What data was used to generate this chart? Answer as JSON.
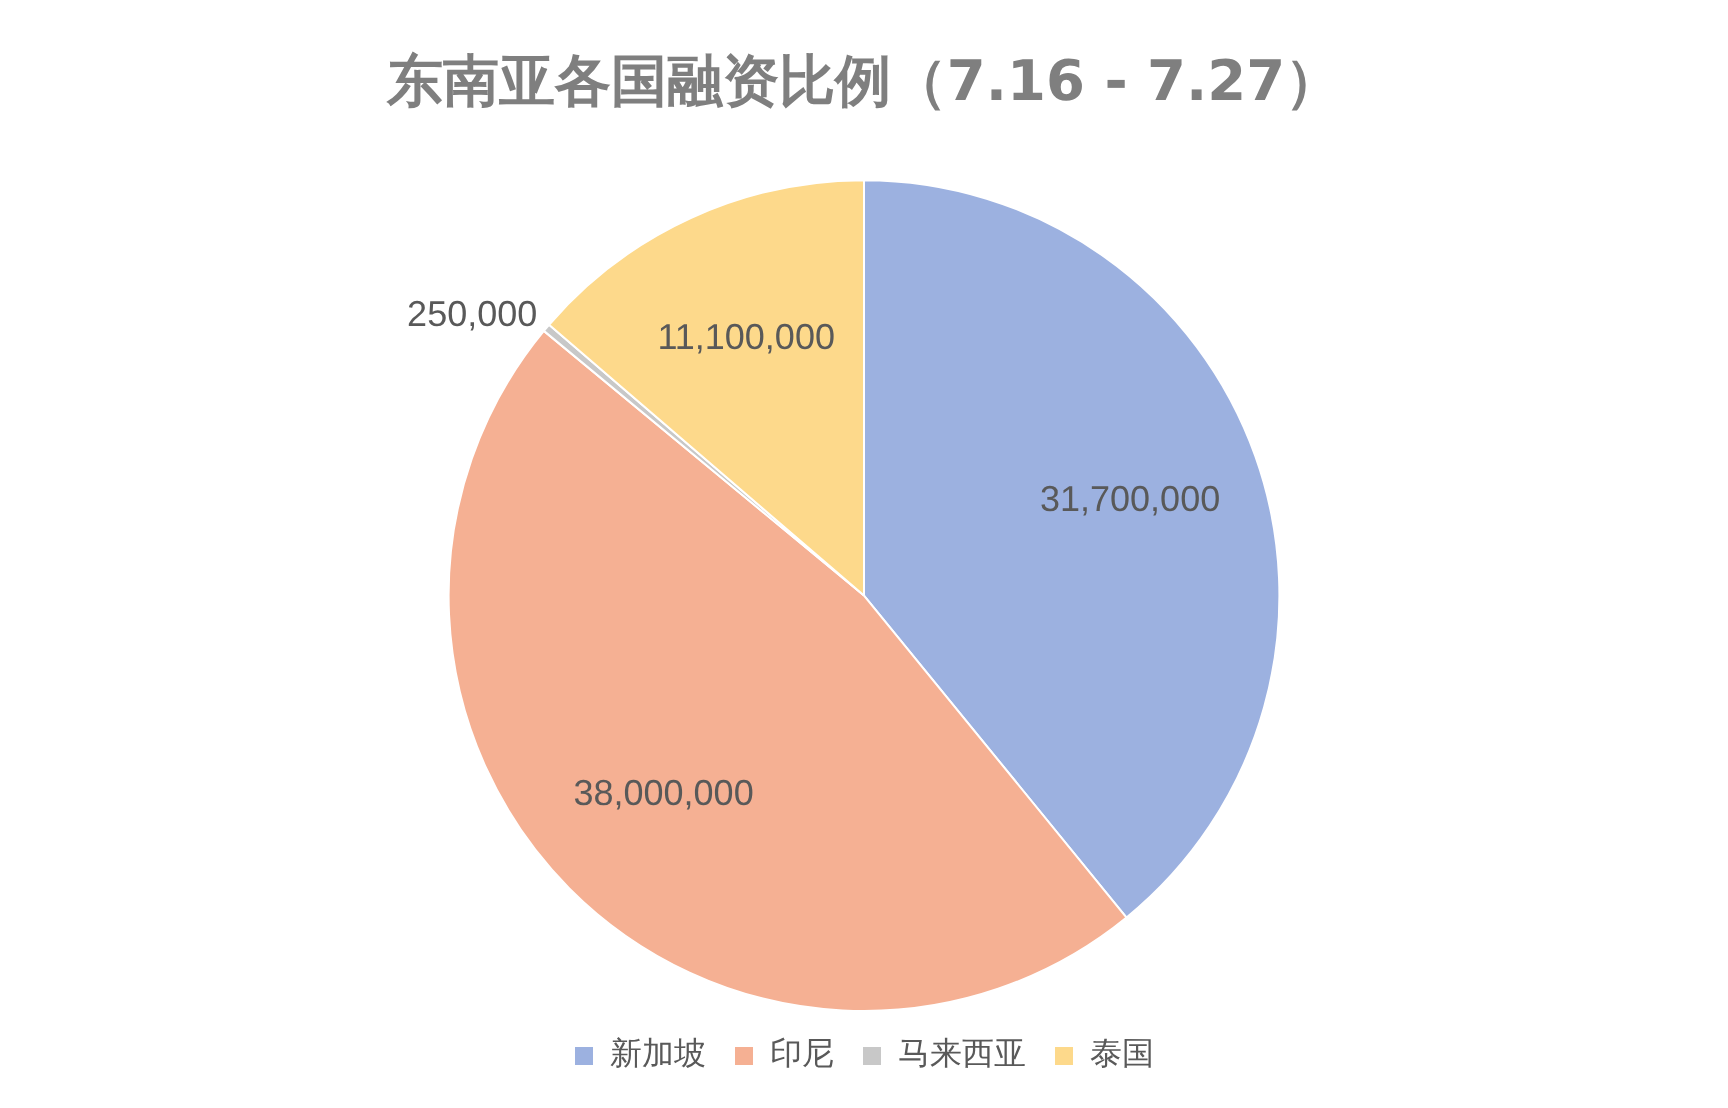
{
  "chart_data": {
    "type": "pie",
    "title": "东南亚各国融资比例（7.16 - 7.27）",
    "categories": [
      "新加坡",
      "印尼",
      "马来西亚",
      "泰国"
    ],
    "values": [
      31700000,
      38000000,
      250000,
      11100000
    ],
    "colors": [
      "#9cb1e0",
      "#f5b093",
      "#c8c8c8",
      "#fdd98b"
    ],
    "value_labels": [
      "31,700,000",
      "38,000,000",
      "250,000",
      "11,100,000"
    ],
    "legend": "bottom"
  }
}
